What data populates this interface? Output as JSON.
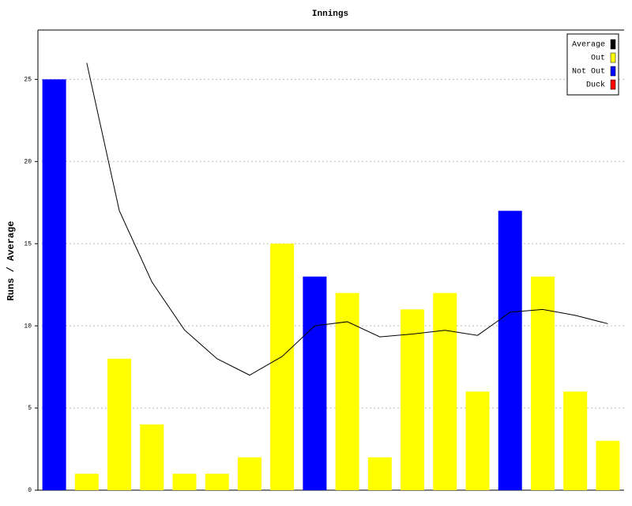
{
  "chart_data": {
    "type": "bar",
    "title": "Innings",
    "y_label": "Runs / Average",
    "ylim": [
      0,
      28
    ],
    "yticks": [
      0,
      5,
      10,
      15,
      20,
      25
    ],
    "grid": true,
    "legend": "top-right",
    "series": [
      {
        "name": "Average",
        "type": "line",
        "color": "#000000",
        "values": [
          null,
          26,
          17,
          12.67,
          9.75,
          8,
          7,
          8.14,
          10,
          10.25,
          9.33,
          9.5,
          9.73,
          9.42,
          10.83,
          11,
          10.64,
          10.13
        ]
      },
      {
        "name": "Out",
        "type": "bar",
        "color": "#ffff00",
        "values": [
          null,
          1,
          8,
          4,
          1,
          1,
          2,
          15,
          null,
          12,
          2,
          11,
          12,
          6,
          null,
          13,
          6,
          3
        ]
      },
      {
        "name": "Not Out",
        "type": "bar",
        "color": "#0000ff",
        "values": [
          25,
          null,
          null,
          null,
          null,
          null,
          null,
          null,
          13,
          null,
          null,
          null,
          null,
          null,
          17,
          null,
          null,
          null
        ]
      },
      {
        "name": "Duck",
        "type": "bar",
        "color": "#ff0000",
        "values": [
          null,
          null,
          null,
          null,
          null,
          null,
          null,
          null,
          null,
          null,
          null,
          null,
          null,
          null,
          null,
          null,
          null,
          null
        ]
      }
    ]
  }
}
